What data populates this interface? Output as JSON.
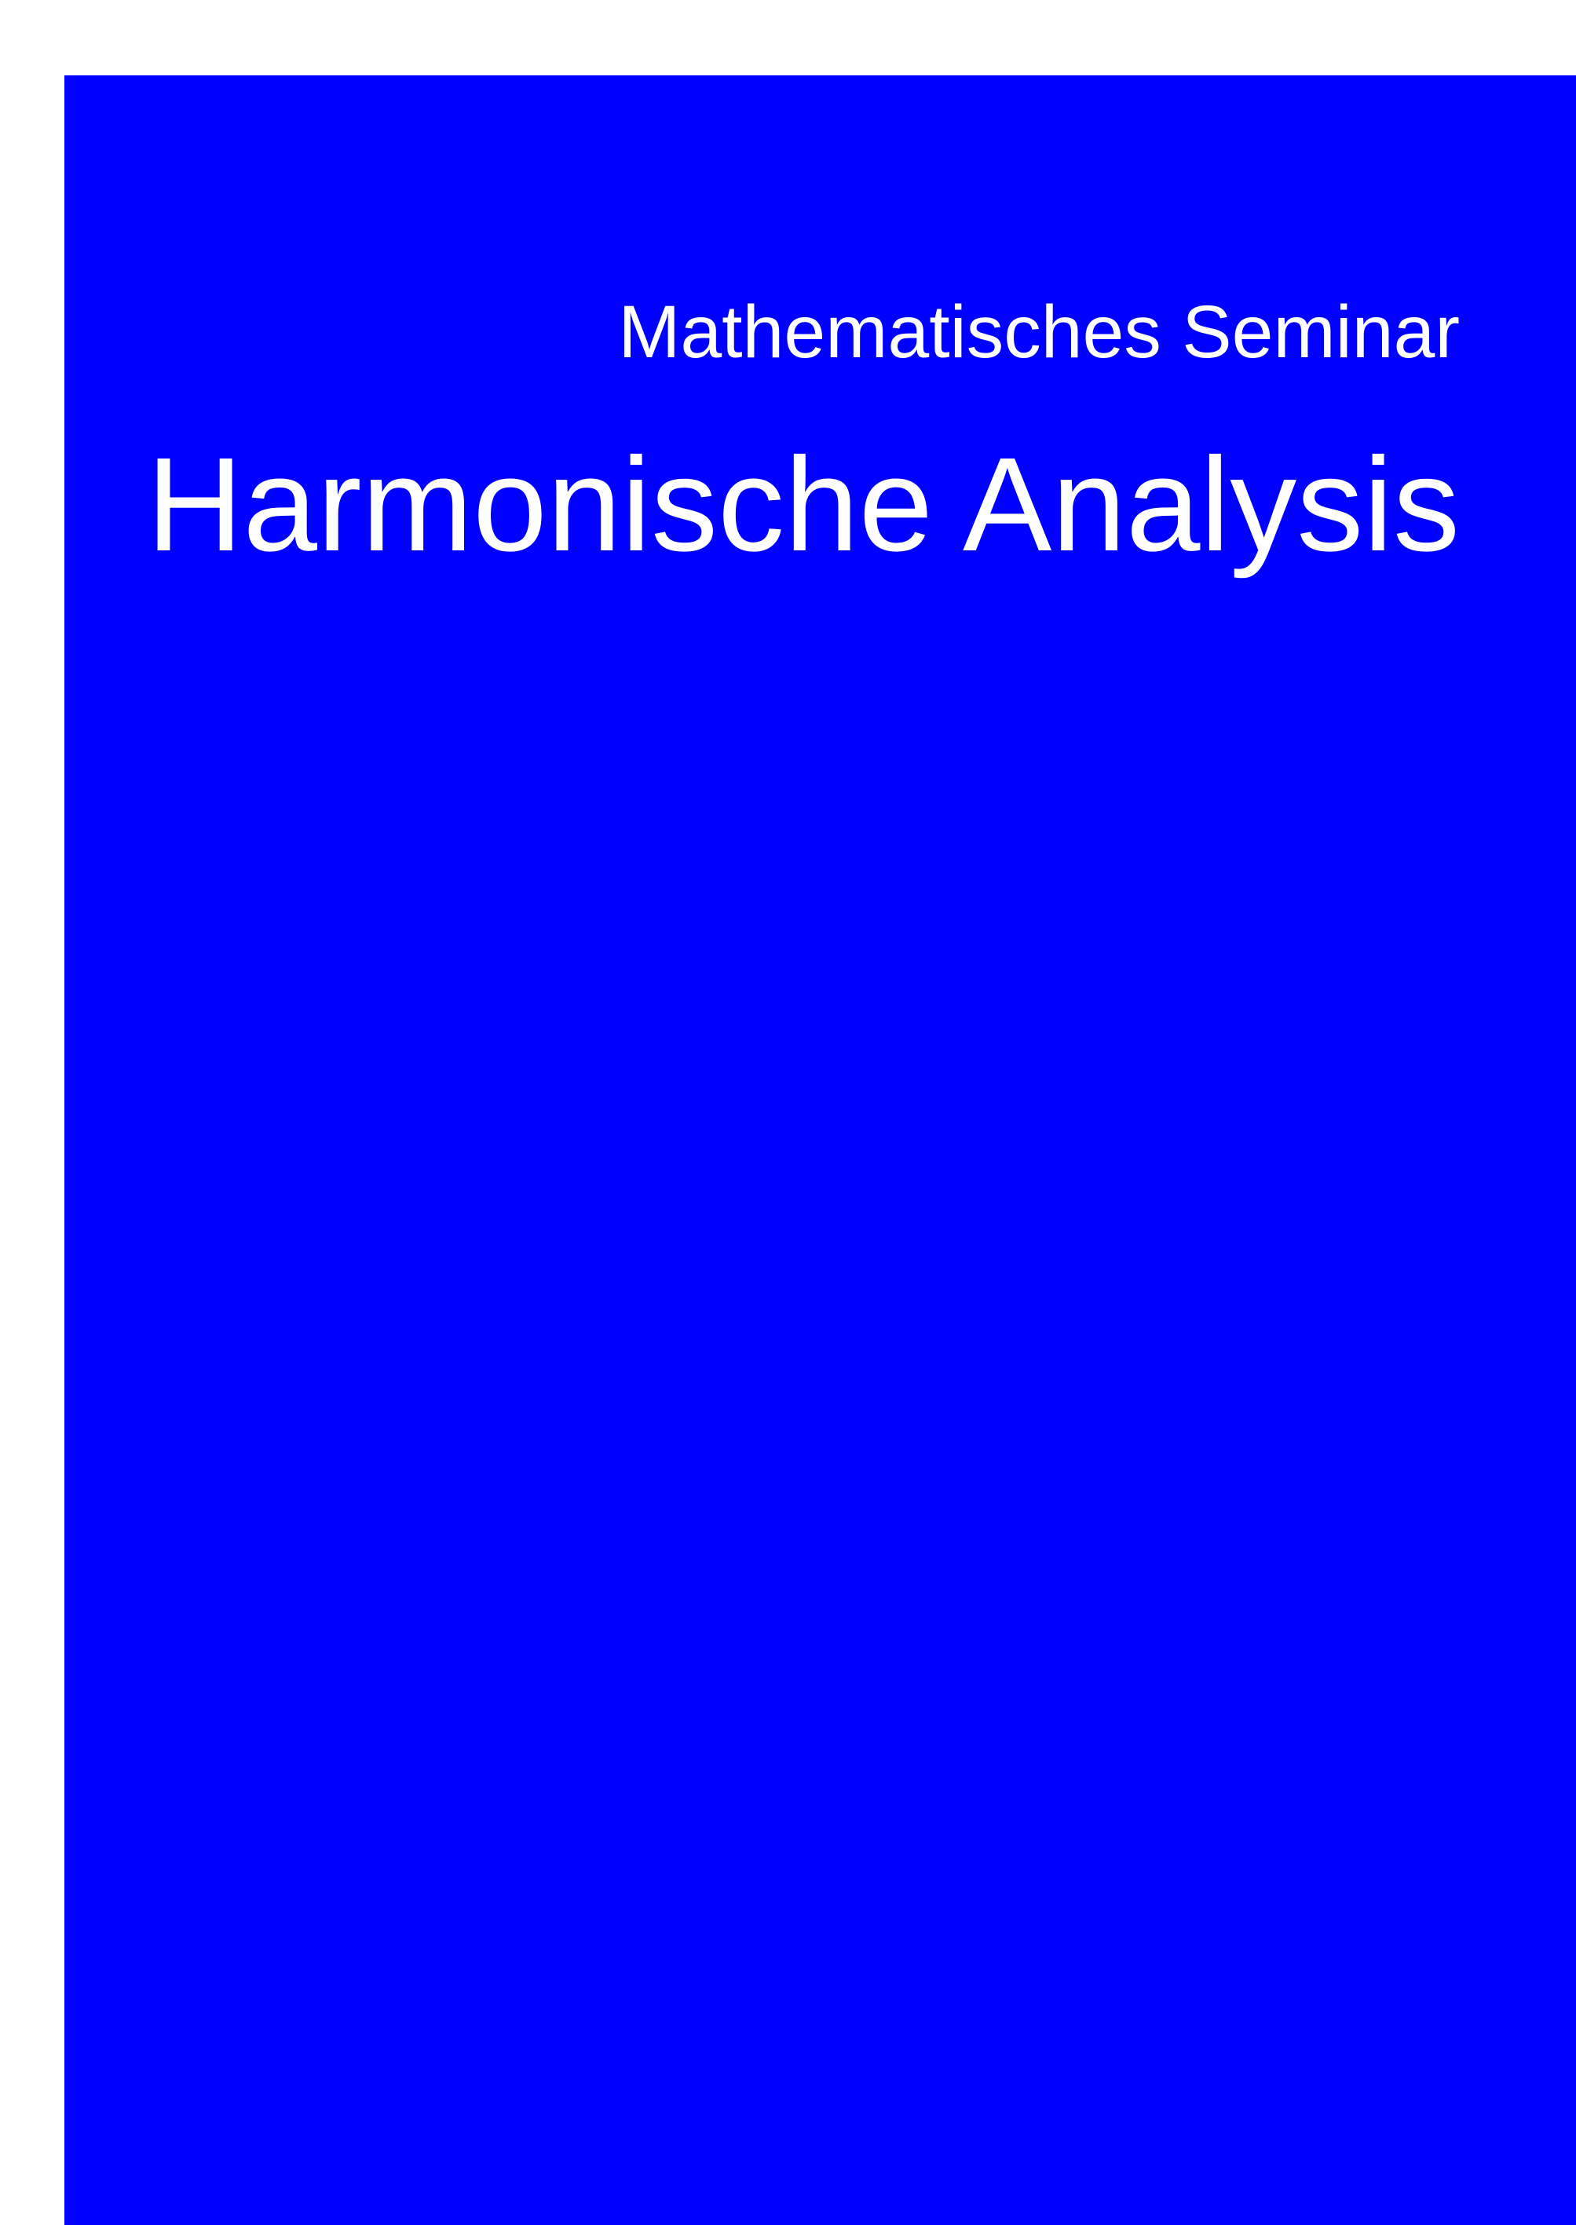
{
  "cover": {
    "background_color": "#0000ff",
    "text_color": "#ffffff",
    "subtitle": "Mathematisches Seminar",
    "title": "Harmonische Analysis"
  }
}
